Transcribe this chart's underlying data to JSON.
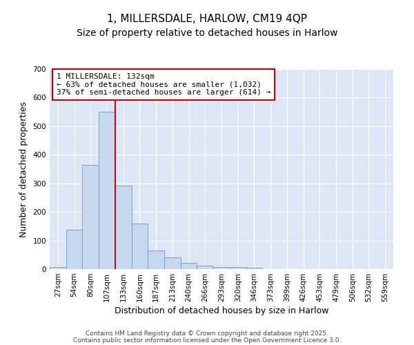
{
  "title": "1, MILLERSDALE, HARLOW, CM19 4QP",
  "subtitle": "Size of property relative to detached houses in Harlow",
  "xlabel": "Distribution of detached houses by size in Harlow",
  "ylabel": "Number of detached properties",
  "categories": [
    "27sqm",
    "54sqm",
    "80sqm",
    "107sqm",
    "133sqm",
    "160sqm",
    "187sqm",
    "213sqm",
    "240sqm",
    "266sqm",
    "293sqm",
    "320sqm",
    "346sqm",
    "373sqm",
    "399sqm",
    "426sqm",
    "453sqm",
    "479sqm",
    "506sqm",
    "532sqm",
    "559sqm"
  ],
  "values": [
    8,
    138,
    365,
    551,
    293,
    159,
    65,
    40,
    22,
    13,
    8,
    7,
    5,
    0,
    0,
    0,
    0,
    0,
    0,
    0,
    0
  ],
  "bar_color": "#c5d8f0",
  "bar_edge_color": "#6699cc",
  "bar_edge_width": 0.6,
  "red_line_index": 4,
  "annotation_line1": "1 MILLERSDALE: 132sqm",
  "annotation_line2": "← 63% of detached houses are smaller (1,032)",
  "annotation_line3": "37% of semi-detached houses are larger (614) →",
  "annotation_box_facecolor": "#ffffff",
  "annotation_box_edgecolor": "#cc0000",
  "red_line_color": "#cc0000",
  "figure_bg_color": "#ffffff",
  "plot_bg_color": "#dce6f5",
  "grid_color": "#ffffff",
  "ylim": [
    0,
    700
  ],
  "yticks": [
    0,
    100,
    200,
    300,
    400,
    500,
    600,
    700
  ],
  "footer1": "Contains HM Land Registry data © Crown copyright and database right 2025.",
  "footer2": "Contains public sector information licensed under the Open Government Licence 3.0.",
  "title_fontsize": 11,
  "subtitle_fontsize": 10,
  "xlabel_fontsize": 9,
  "ylabel_fontsize": 9,
  "tick_fontsize": 7.5,
  "annotation_fontsize": 8,
  "footer_fontsize": 6.5
}
